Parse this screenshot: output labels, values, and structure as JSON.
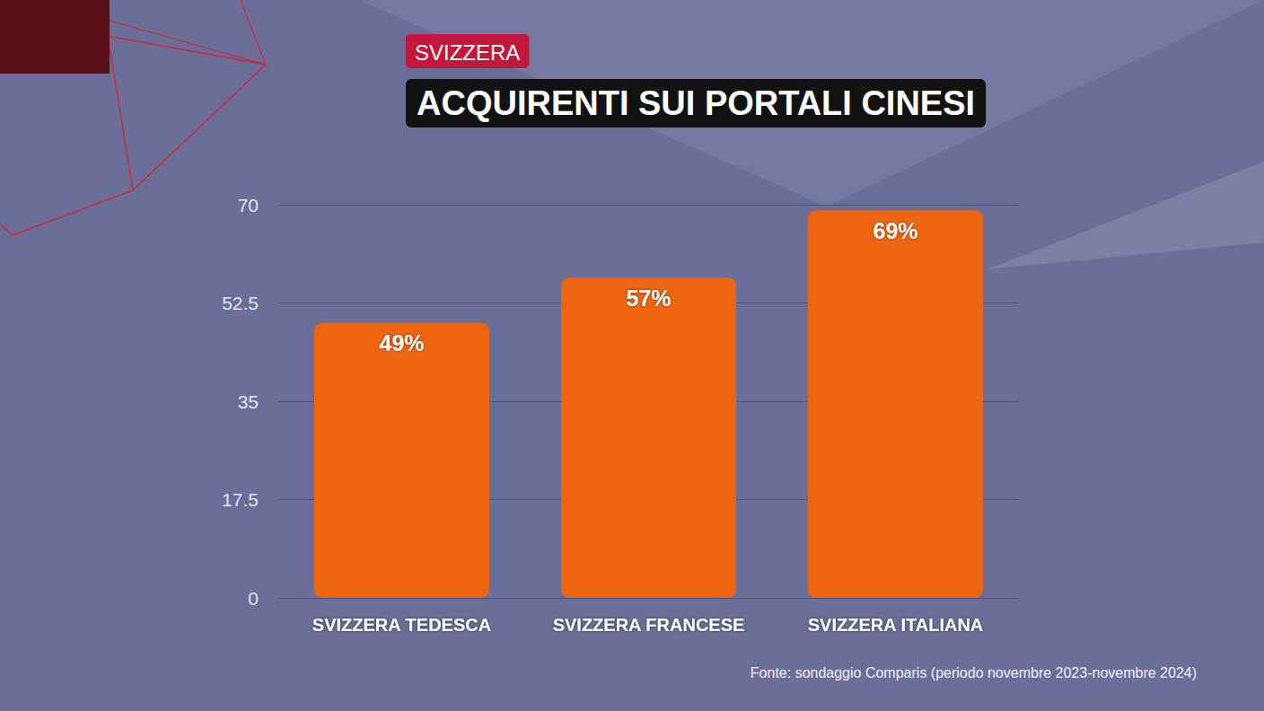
{
  "chart_data": {
    "type": "bar",
    "subtitle": "SVIZZERA",
    "title": "ACQUIRENTI SUI PORTALI CINESI",
    "categories": [
      "SVIZZERA TEDESCA",
      "SVIZZERA FRANCESE",
      "SVIZZERA ITALIANA"
    ],
    "values": [
      49,
      57,
      69
    ],
    "value_labels": [
      "49%",
      "57%",
      "69%"
    ],
    "data_labels": true,
    "color": "#ee6511",
    "ylim": [
      0,
      70
    ],
    "yticks": [
      0,
      17.5,
      35,
      52.5,
      70
    ],
    "grid": true,
    "source": "Fonte: sondaggio Comparis (periodo novembre 2023-novembre 2024)"
  }
}
